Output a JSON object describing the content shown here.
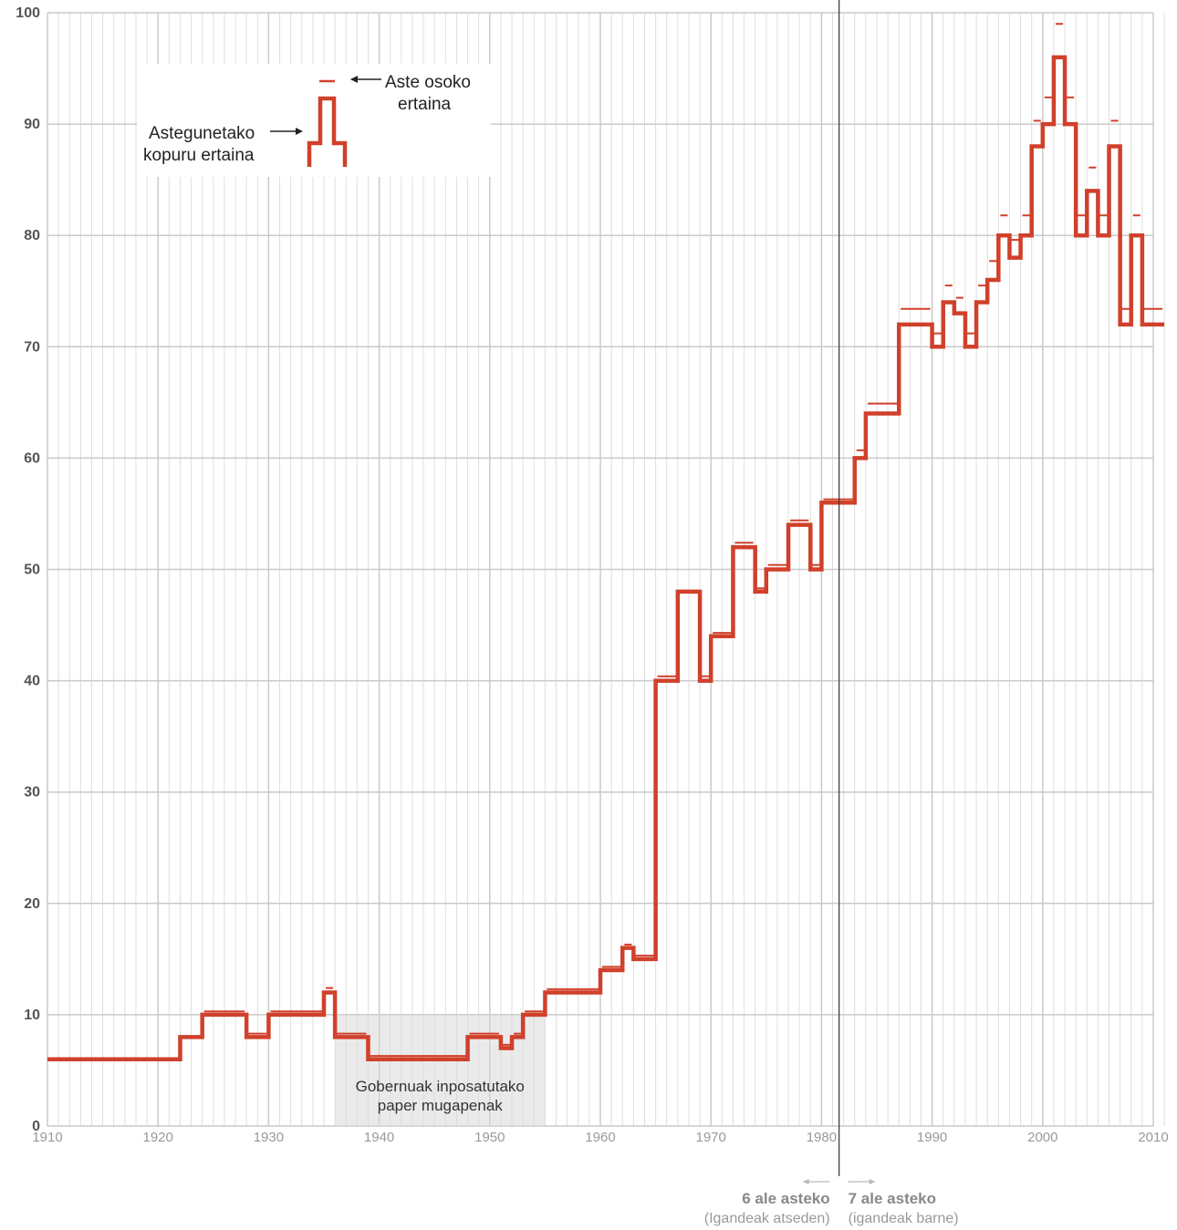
{
  "chart_data": {
    "type": "line",
    "title": "",
    "xlabel": "",
    "ylabel": "",
    "xlim": [
      1910,
      2011
    ],
    "ylim": [
      0,
      100
    ],
    "yticks": [
      "0",
      "10",
      "20",
      "30",
      "40",
      "50",
      "60",
      "70",
      "80",
      "90",
      "100"
    ],
    "xticks": [
      "1910",
      "1920",
      "1930",
      "1940",
      "1950",
      "1960",
      "1970",
      "1980",
      "1990",
      "2000",
      "2010"
    ],
    "grid": true,
    "series": [
      {
        "name": "Astegunetako kopuru ertaina",
        "style": "step",
        "color": "#d0402b",
        "points": [
          [
            1910,
            6
          ],
          [
            1922,
            8
          ],
          [
            1924,
            10
          ],
          [
            1928,
            8
          ],
          [
            1930,
            10
          ],
          [
            1935,
            12
          ],
          [
            1936,
            8
          ],
          [
            1939,
            6
          ],
          [
            1948,
            8
          ],
          [
            1951,
            7
          ],
          [
            1952,
            8
          ],
          [
            1953,
            10
          ],
          [
            1955,
            12
          ],
          [
            1960,
            14
          ],
          [
            1962,
            16
          ],
          [
            1963,
            15
          ],
          [
            1965,
            40
          ],
          [
            1967,
            48
          ],
          [
            1969,
            40
          ],
          [
            1970,
            44
          ],
          [
            1972,
            52
          ],
          [
            1974,
            48
          ],
          [
            1975,
            50
          ],
          [
            1977,
            54
          ],
          [
            1979,
            50
          ],
          [
            1980,
            56
          ],
          [
            1983,
            60
          ],
          [
            1984,
            64
          ],
          [
            1987,
            72
          ],
          [
            1990,
            70
          ],
          [
            1991,
            74
          ],
          [
            1992,
            73
          ],
          [
            1993,
            70
          ],
          [
            1994,
            74
          ],
          [
            1995,
            76
          ],
          [
            1996,
            80
          ],
          [
            1997,
            78
          ],
          [
            1998,
            80
          ],
          [
            1999,
            88
          ],
          [
            2000,
            90
          ],
          [
            2001,
            96
          ],
          [
            2002,
            90
          ],
          [
            2003,
            80
          ],
          [
            2004,
            84
          ],
          [
            2005,
            80
          ],
          [
            2006,
            88
          ],
          [
            2007,
            72
          ],
          [
            2008,
            80
          ],
          [
            2009,
            72
          ]
        ]
      },
      {
        "name": "Aste osoko ertaina",
        "style": "dash",
        "color": "#d0402b",
        "points": [
          [
            1910,
            6
          ],
          [
            1922,
            8
          ],
          [
            1924,
            10.3
          ],
          [
            1928,
            8.3
          ],
          [
            1930,
            10.3
          ],
          [
            1935,
            12.4
          ],
          [
            1936,
            8.3
          ],
          [
            1939,
            6.3
          ],
          [
            1948,
            8.3
          ],
          [
            1951,
            7.3
          ],
          [
            1952,
            8.3
          ],
          [
            1953,
            10.3
          ],
          [
            1955,
            12.3
          ],
          [
            1960,
            14.3
          ],
          [
            1962,
            16.3
          ],
          [
            1963,
            15.3
          ],
          [
            1965,
            40.4
          ],
          [
            1967,
            48.1
          ],
          [
            1969,
            40.4
          ],
          [
            1970,
            44.3
          ],
          [
            1972,
            52.4
          ],
          [
            1974,
            48.3
          ],
          [
            1975,
            50.4
          ],
          [
            1977,
            54.4
          ],
          [
            1979,
            50.4
          ],
          [
            1980,
            56.3
          ],
          [
            1983,
            60.7
          ],
          [
            1984,
            64.9
          ],
          [
            1987,
            73.4
          ],
          [
            1990,
            71.2
          ],
          [
            1991,
            75.5
          ],
          [
            1992,
            74.4
          ],
          [
            1993,
            71.2
          ],
          [
            1994,
            75.5
          ],
          [
            1995,
            77.7
          ],
          [
            1996,
            81.8
          ],
          [
            1997,
            79.6
          ],
          [
            1998,
            81.8
          ],
          [
            1999,
            90.3
          ],
          [
            2000,
            92.4
          ],
          [
            2001,
            99
          ],
          [
            2002,
            92.4
          ],
          [
            2003,
            81.8
          ],
          [
            2004,
            86.1
          ],
          [
            2005,
            81.8
          ],
          [
            2006,
            90.3
          ],
          [
            2007,
            73.4
          ],
          [
            2008,
            81.8
          ],
          [
            2009,
            73.4
          ]
        ]
      }
    ],
    "shaded_region": {
      "x": [
        1936,
        1955
      ],
      "label_lines": [
        "Gobernuak inposatutako",
        "paper mugapenak"
      ]
    },
    "divider": {
      "x": 1982,
      "left_bold": "6 ale asteko",
      "left_sub": "(Igandeak atseden)",
      "right_bold": "7 ale asteko",
      "right_sub": "(igandeak barne)"
    },
    "legend": {
      "placement": "top-left",
      "dash_label_lines": [
        "Aste osoko",
        "ertaina"
      ],
      "step_label_lines": [
        "Astegunetako",
        "kopuru ertaina"
      ]
    }
  }
}
